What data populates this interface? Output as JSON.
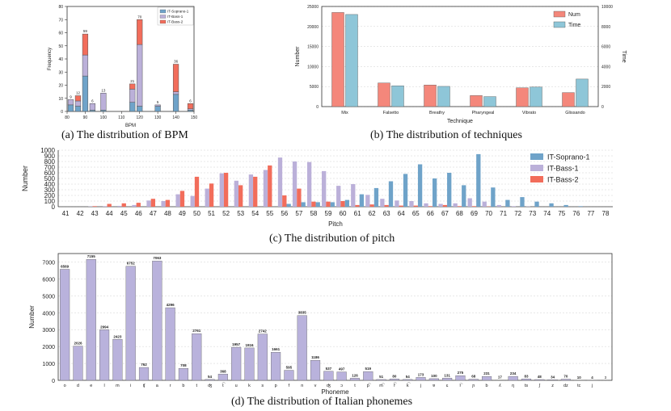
{
  "colors": {
    "soprano": "#6fa3c9",
    "bass1": "#bbb0d9",
    "bass2": "#f26d5b",
    "num": "#f4877b",
    "time": "#8ec6d8",
    "phoneme": "#b9b2dc",
    "grid": "#d0d0d0"
  },
  "chart_data": [
    {
      "id": "bpm",
      "type": "bar",
      "caption": "(a) The distribution of BPM",
      "xlabel": "BPM",
      "ylabel": "Frequency",
      "ylim": [
        0,
        80
      ],
      "yticks": [
        0,
        10,
        20,
        30,
        40,
        50,
        60,
        70,
        80
      ],
      "xlim": [
        80,
        150
      ],
      "xticks": [
        80,
        90,
        100,
        110,
        120,
        130,
        140,
        150
      ],
      "stacked": true,
      "bin_width": 3,
      "x": [
        82,
        86,
        90,
        94,
        100,
        116,
        120,
        130,
        140,
        148
      ],
      "series": [
        {
          "name": "IT-Soprano-1",
          "values": [
            5,
            4,
            27,
            1,
            1,
            7,
            4,
            4,
            13,
            1
          ]
        },
        {
          "name": "IT-Bass-1",
          "values": [
            4,
            4,
            16,
            5,
            13,
            10,
            47,
            1,
            2,
            1
          ]
        },
        {
          "name": "IT-Bass-2",
          "values": [
            0,
            4,
            16,
            0,
            0,
            4,
            19,
            0,
            21,
            4
          ]
        }
      ],
      "bar_labels": [
        "9",
        "12",
        "59",
        "6",
        "13",
        "21",
        "70",
        "5",
        "36",
        "6"
      ]
    },
    {
      "id": "technique",
      "type": "bar",
      "caption": "(b) The distribution of techniques",
      "xlabel": "Technique",
      "ylabel": "Number",
      "ylabel_right": "Time",
      "ylim": [
        0,
        25000
      ],
      "yticks": [
        0,
        5000,
        10000,
        15000,
        20000,
        25000
      ],
      "ylim_right": [
        0,
        10000
      ],
      "yticks_right": [
        0,
        2000,
        4000,
        6000,
        8000,
        10000
      ],
      "categories": [
        "Mix",
        "Falsetto",
        "Breathy",
        "Pharyngeal",
        "Vibrato",
        "Glissando"
      ],
      "series": [
        {
          "name": "Num",
          "axis": "left",
          "values": [
            23500,
            5900,
            5400,
            2750,
            4700,
            3500
          ]
        },
        {
          "name": "Time",
          "axis": "right",
          "values": [
            9200,
            2080,
            2020,
            1000,
            1950,
            2750
          ]
        }
      ]
    },
    {
      "id": "pitch",
      "type": "bar",
      "caption": "(c) The distribution of pitch",
      "xlabel": "Pitch",
      "ylabel": "Number",
      "ylim": [
        0,
        1000
      ],
      "yticks": [
        0,
        100,
        200,
        300,
        400,
        500,
        600,
        700,
        800,
        900,
        1000
      ],
      "categories": [
        "41",
        "42",
        "43",
        "44",
        "45",
        "46",
        "47",
        "48",
        "49",
        "50",
        "51",
        "52",
        "53",
        "54",
        "55",
        "56",
        "57",
        "58",
        "59",
        "60",
        "61",
        "62",
        "63",
        "64",
        "65",
        "66",
        "67",
        "68",
        "69",
        "70",
        "71",
        "72",
        "73",
        "74",
        "75",
        "76",
        "77",
        "78"
      ],
      "series": [
        {
          "name": "IT-Soprano-1",
          "values": [
            0,
            0,
            0,
            0,
            0,
            0,
            0,
            0,
            0,
            0,
            0,
            0,
            0,
            0,
            0,
            50,
            80,
            80,
            80,
            120,
            220,
            330,
            450,
            580,
            750,
            500,
            600,
            380,
            930,
            340,
            120,
            170,
            90,
            60,
            30,
            10,
            0,
            0
          ]
        },
        {
          "name": "IT-Bass-1",
          "values": [
            0,
            0,
            5,
            10,
            15,
            30,
            110,
            100,
            220,
            190,
            320,
            590,
            460,
            570,
            650,
            870,
            800,
            790,
            630,
            370,
            400,
            210,
            140,
            110,
            100,
            60,
            50,
            60,
            150,
            90,
            30,
            10,
            5,
            0,
            0,
            0,
            0,
            0
          ]
        },
        {
          "name": "IT-Bass-2",
          "values": [
            0,
            0,
            10,
            50,
            60,
            70,
            140,
            120,
            280,
            530,
            410,
            600,
            380,
            530,
            730,
            200,
            320,
            90,
            90,
            100,
            30,
            40,
            30,
            20,
            20,
            10,
            30,
            10,
            10,
            5,
            0,
            0,
            0,
            0,
            0,
            0,
            0,
            0
          ]
        }
      ]
    },
    {
      "id": "phoneme",
      "type": "bar",
      "caption": "(d) The distribution of Italian phonemes",
      "xlabel": "Phoneme",
      "ylabel": "Number",
      "ylim": [
        0,
        7500
      ],
      "yticks": [
        0,
        1000,
        2000,
        3000,
        4000,
        5000,
        6000,
        7000
      ],
      "categories": [
        "o",
        "d",
        "e",
        "l",
        "m",
        "i",
        "ʧ",
        "a",
        "r",
        "b",
        "t",
        "ʤ",
        "t͡",
        "u",
        "k",
        "s",
        "p",
        "f",
        "n",
        "v",
        "ʤ",
        "ɔ",
        "t",
        "p͡",
        "m͡",
        "f͡",
        "k͡",
        "j",
        "ɐ",
        "ɛ",
        "r͡",
        "ɲ",
        "b",
        "ʎ",
        "ŋ",
        "ts",
        "ʃ",
        "z",
        "dz",
        "tc",
        "j"
      ],
      "values": [
        6569,
        2026,
        7155,
        2994,
        2423,
        6752,
        762,
        7063,
        4296,
        708,
        2761,
        54,
        368,
        1957,
        1916,
        2742,
        1661,
        595,
        3835,
        1186,
        537,
        497,
        126,
        519,
        51,
        80,
        54,
        173,
        100,
        131,
        275,
        68,
        231,
        17,
        234,
        83,
        48,
        34,
        70,
        10,
        4
      ],
      "labels": [
        "6569",
        "2026",
        "7155",
        "2994",
        "2423",
        "6752",
        "762",
        "7063",
        "4296",
        "708",
        "2761",
        "54",
        "368",
        "1957",
        "1916",
        "2742",
        "1661",
        "595",
        "3835",
        "1186",
        "537",
        "497",
        "126",
        "519",
        "51",
        "80",
        "54",
        "173",
        "100",
        "131",
        "275",
        "68",
        "231",
        "17",
        "234",
        "83",
        "48",
        "34",
        "70",
        "10",
        "4"
      ],
      "extra_label": "3"
    }
  ]
}
